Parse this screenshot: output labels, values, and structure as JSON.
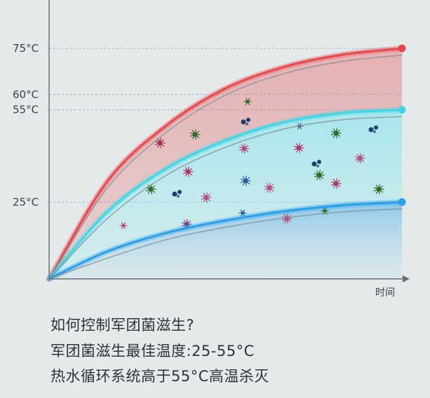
{
  "chart_data": {
    "type": "area",
    "title": "",
    "xlabel": "时间",
    "ylabel": "",
    "ylim": [
      0,
      80
    ],
    "y_ticks": [
      "75°C",
      "60°C",
      "55°C",
      "25°C"
    ],
    "y_tick_values": [
      75,
      60,
      55,
      25
    ],
    "grid": "dashed horizontal lines at tick values",
    "series": [
      {
        "values": [
          0,
          32,
          50,
          62,
          69,
          73,
          75
        ],
        "color": "#e8474c"
      },
      {
        "values": [
          0,
          22,
          36,
          45,
          51,
          54,
          55
        ],
        "color": "#3fd6e6"
      },
      {
        "values": [
          0,
          9,
          15,
          19,
          22,
          24,
          25
        ],
        "color": "#2aa0ea"
      }
    ],
    "x": [
      0,
      1,
      2,
      3,
      4,
      5,
      6
    ],
    "annotation": "bacteria/microbe illustrations scattered between 25°C and 55°C curves"
  },
  "captions": {
    "line1": "如何控制军团菌滋生?",
    "line2": "军团菌滋生最佳温度:25-55°C",
    "line3": "热水循环系统高于55°C高温杀灭"
  },
  "colors": {
    "hot": "#e8474c",
    "warm": "#3fd6e6",
    "cool": "#2aa0ea",
    "grid": "#7da6c7",
    "axis": "#6b6f73"
  }
}
